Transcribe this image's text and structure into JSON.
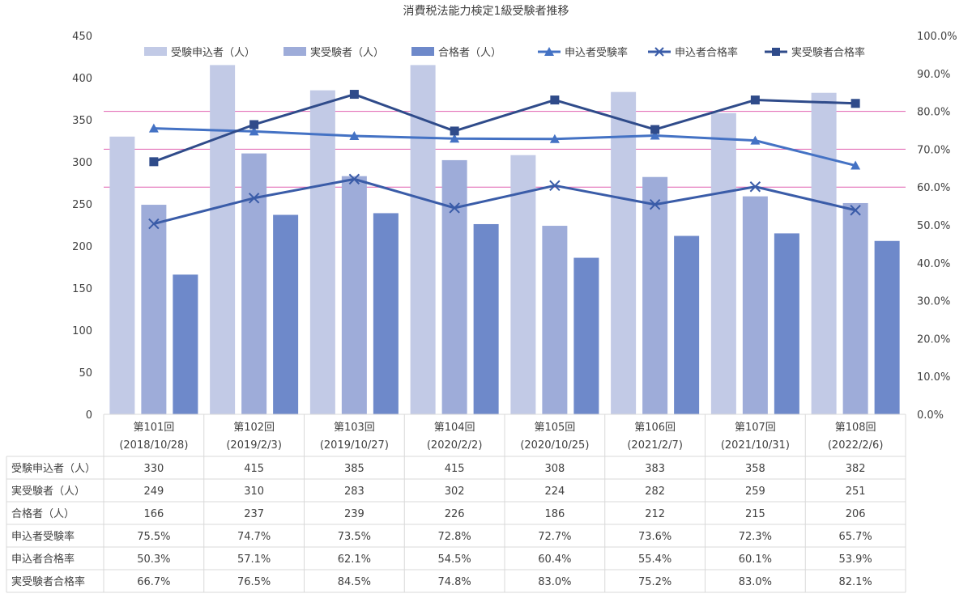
{
  "chart_data": {
    "type": "bar",
    "title": "消費税法能力検定1級受験者推移",
    "categories": [
      "第101回",
      "第102回",
      "第103回",
      "第104回",
      "第105回",
      "第106回",
      "第107回",
      "第108回"
    ],
    "category_dates": [
      "(2018/10/28)",
      "(2019/2/3)",
      "(2019/10/27)",
      "(2020/2/2)",
      "(2020/10/25)",
      "(2021/2/7)",
      "(2021/10/31)",
      "(2022/2/6)"
    ],
    "bar_series": [
      {
        "name": "受験申込者（人）",
        "color": "#c2cae6",
        "values": [
          330,
          415,
          385,
          415,
          308,
          383,
          358,
          382
        ]
      },
      {
        "name": "実受験者（人）",
        "color": "#9eacd9",
        "values": [
          249,
          310,
          283,
          302,
          224,
          282,
          259,
          251
        ]
      },
      {
        "name": "合格者（人）",
        "color": "#6e89ca",
        "values": [
          166,
          237,
          239,
          226,
          186,
          212,
          215,
          206
        ]
      }
    ],
    "line_series": [
      {
        "name": "申込者受験率",
        "color": "#4472c4",
        "marker": "triangle",
        "values": [
          75.5,
          74.7,
          73.5,
          72.8,
          72.7,
          73.6,
          72.3,
          65.7
        ]
      },
      {
        "name": "申込者合格率",
        "color": "#3a5ca8",
        "marker": "x",
        "values": [
          50.3,
          57.1,
          62.1,
          54.5,
          60.4,
          55.4,
          60.1,
          53.9
        ]
      },
      {
        "name": "実受験者合格率",
        "color": "#2f4b8a",
        "marker": "square",
        "values": [
          66.7,
          76.5,
          84.5,
          74.8,
          83.0,
          75.2,
          83.0,
          82.1
        ]
      }
    ],
    "y_left": {
      "min": 0,
      "max": 450,
      "step": 50,
      "ticks": [
        "0",
        "50",
        "100",
        "150",
        "200",
        "250",
        "300",
        "350",
        "400",
        "450"
      ]
    },
    "y_right": {
      "min": 0,
      "max": 100,
      "step": 10,
      "ticks": [
        "0.0%",
        "10.0%",
        "20.0%",
        "30.0%",
        "40.0%",
        "50.0%",
        "60.0%",
        "70.0%",
        "80.0%",
        "90.0%",
        "100.0%"
      ]
    },
    "reference_lines": {
      "color": "#e060b0",
      "values": [
        360,
        315,
        270
      ]
    },
    "legend_placement": "top",
    "table": {
      "row_labels": [
        "受験申込者（人）",
        "実受験者（人）",
        "合格者（人）",
        "申込者受験率",
        "申込者合格率",
        "実受験者合格率"
      ],
      "rows": [
        [
          "330",
          "415",
          "385",
          "415",
          "308",
          "383",
          "358",
          "382"
        ],
        [
          "249",
          "310",
          "283",
          "302",
          "224",
          "282",
          "259",
          "251"
        ],
        [
          "166",
          "237",
          "239",
          "226",
          "186",
          "212",
          "215",
          "206"
        ],
        [
          "75.5%",
          "74.7%",
          "73.5%",
          "72.8%",
          "72.7%",
          "73.6%",
          "72.3%",
          "65.7%"
        ],
        [
          "50.3%",
          "57.1%",
          "62.1%",
          "54.5%",
          "60.4%",
          "55.4%",
          "60.1%",
          "53.9%"
        ],
        [
          "66.7%",
          "76.5%",
          "84.5%",
          "74.8%",
          "83.0%",
          "75.2%",
          "83.0%",
          "82.1%"
        ]
      ]
    }
  }
}
